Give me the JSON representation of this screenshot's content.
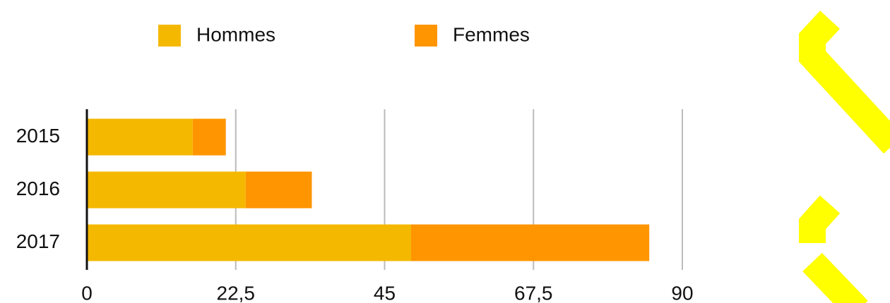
{
  "chart_data": {
    "type": "stacked-bar-horizontal",
    "categories": [
      "2015",
      "2016",
      "2017"
    ],
    "series": [
      {
        "name": "Hommes",
        "color": "#f5b800",
        "values": [
          16,
          24,
          49
        ]
      },
      {
        "name": "Femmes",
        "color": "#ff9500",
        "values": [
          5,
          10,
          36
        ]
      }
    ],
    "xlim": [
      0,
      90
    ],
    "xticks": [
      0,
      {
        "value": 22.5,
        "label": "22,5"
      },
      45,
      {
        "value": 67.5,
        "label": "67,5"
      },
      90
    ],
    "grid": true,
    "legend": "top"
  }
}
